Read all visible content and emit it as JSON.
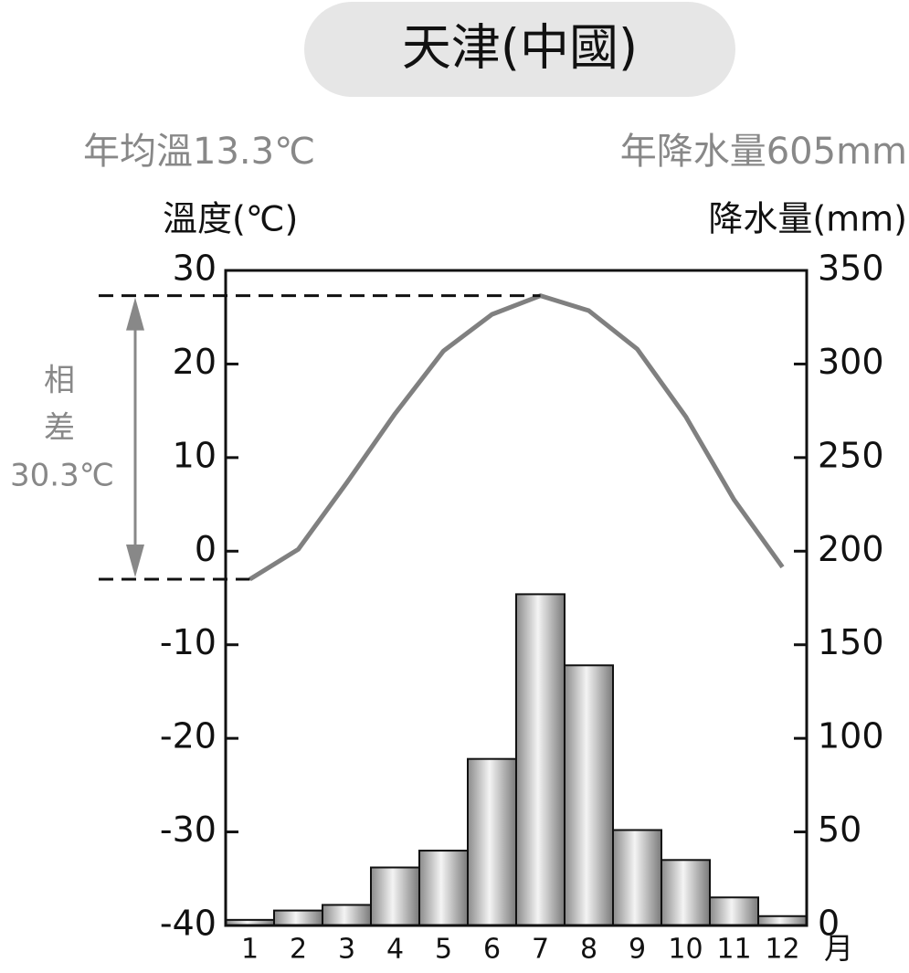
{
  "chart_data": {
    "type": "climate",
    "title": "天津(中國)",
    "subtitle_left": "年均溫13.3℃",
    "subtitle_right": "年降水量605mm",
    "y_label": "溫度(℃)",
    "y2_label": "降水量(mm)",
    "x_unit": "月",
    "annotation": [
      "相",
      "差",
      "30.3℃"
    ],
    "categories": [
      "1",
      "2",
      "3",
      "4",
      "5",
      "6",
      "7",
      "8",
      "9",
      "10",
      "11",
      "12"
    ],
    "series": [
      {
        "name": "溫度",
        "type": "line",
        "color": "#808080",
        "values": [
          -3.0,
          0.2,
          7.3,
          14.7,
          21.4,
          25.3,
          27.3,
          25.7,
          21.6,
          14.4,
          5.5,
          -1.7
        ]
      },
      {
        "name": "降水量",
        "type": "bar",
        "axis": "y2",
        "color": "#b0b0b0",
        "values": [
          3,
          8,
          11,
          31,
          40,
          89,
          177,
          139,
          51,
          35,
          15,
          5
        ]
      }
    ],
    "ylim": [
      -40,
      30
    ],
    "yticks": [
      -40,
      -30,
      -20,
      -10,
      0,
      10,
      20,
      30
    ],
    "y2lim": [
      0,
      350
    ],
    "y2ticks": [
      0,
      50,
      100,
      150,
      200,
      250,
      300,
      350
    ]
  }
}
